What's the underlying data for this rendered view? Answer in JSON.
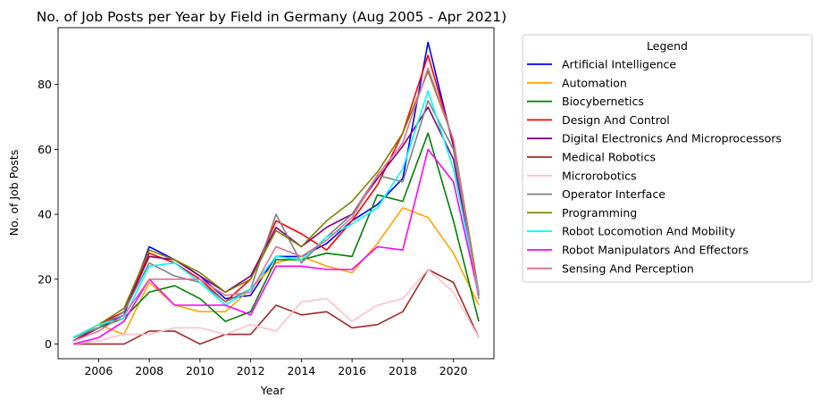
{
  "chart_data": {
    "type": "line",
    "title": "No. of Job Posts per Year by Field in Germany (Aug 2005 - Apr 2021)",
    "xlabel": "Year",
    "ylabel": "No. of Job Posts",
    "xlim": [
      2004.4,
      2021.6
    ],
    "ylim": [
      -4.5,
      97.5
    ],
    "x_ticks": [
      2006,
      2008,
      2010,
      2012,
      2014,
      2016,
      2018,
      2020
    ],
    "y_ticks": [
      0,
      20,
      40,
      60,
      80
    ],
    "grid": false,
    "legend": {
      "title": "Legend",
      "placement": "outside-right"
    },
    "x": [
      2005,
      2006,
      2007,
      2008,
      2009,
      2010,
      2011,
      2012,
      2013,
      2014,
      2015,
      2016,
      2017,
      2018,
      2019,
      2020,
      2021
    ],
    "series": [
      {
        "name": "Artificial Intelligence",
        "color": "#0000ff",
        "values": [
          2,
          5,
          9,
          30,
          26,
          21,
          14,
          15,
          27,
          27,
          31,
          38,
          43,
          51,
          93,
          61,
          15
        ]
      },
      {
        "name": "Automation",
        "color": "#ffa500",
        "values": [
          1,
          6,
          3,
          19,
          12,
          10,
          10,
          17,
          25,
          27,
          24,
          22,
          31,
          42,
          39,
          28,
          12
        ]
      },
      {
        "name": "Biocybernetics",
        "color": "#008000",
        "values": [
          1,
          5,
          8,
          16,
          18,
          14,
          7,
          10,
          26,
          26,
          28,
          27,
          46,
          44,
          65,
          38,
          7
        ]
      },
      {
        "name": "Design And Control",
        "color": "#ff0000",
        "values": [
          2,
          6,
          10,
          28,
          25,
          20,
          13,
          20,
          38,
          34,
          29,
          38,
          49,
          65,
          89,
          62,
          14
        ]
      },
      {
        "name": "Digital Electronics And Microprocessors",
        "color": "#800080",
        "values": [
          1,
          5,
          10,
          27,
          26,
          21,
          16,
          21,
          36,
          30,
          36,
          40,
          51,
          61,
          73,
          57,
          16
        ]
      },
      {
        "name": "Medical Robotics",
        "color": "#a52a2a",
        "values": [
          0,
          0,
          0,
          4,
          4,
          0,
          3,
          3,
          12,
          9,
          10,
          5,
          6,
          10,
          23,
          19,
          2
        ]
      },
      {
        "name": "Microrobotics",
        "color": "#ffc0cb",
        "values": [
          0,
          1,
          3,
          3,
          5,
          5,
          3,
          6,
          4,
          13,
          14,
          7,
          12,
          14,
          23,
          16,
          2
        ]
      },
      {
        "name": "Operator Interface",
        "color": "#808080",
        "values": [
          2,
          5,
          10,
          25,
          21,
          19,
          13,
          17,
          40,
          25,
          33,
          40,
          52,
          50,
          75,
          60,
          16
        ]
      },
      {
        "name": "Programming",
        "color": "#808000",
        "values": [
          2,
          6,
          11,
          29,
          26,
          22,
          16,
          20,
          35,
          30,
          38,
          44,
          53,
          65,
          84,
          63,
          16
        ]
      },
      {
        "name": "Robot Locomotion And Mobility",
        "color": "#00ffff",
        "values": [
          2,
          6,
          8,
          24,
          25,
          19,
          12,
          17,
          27,
          26,
          33,
          37,
          42,
          54,
          78,
          54,
          16
        ]
      },
      {
        "name": "Robot Manipulators And Effectors",
        "color": "#ff00ff",
        "values": [
          0,
          2,
          7,
          20,
          12,
          12,
          12,
          9,
          24,
          24,
          23,
          23,
          30,
          29,
          60,
          50,
          15
        ]
      },
      {
        "name": "Sensing And Perception",
        "color": "#db7093",
        "values": [
          1,
          4,
          9,
          20,
          20,
          20,
          15,
          16,
          30,
          27,
          32,
          39,
          52,
          62,
          85,
          63,
          14
        ]
      }
    ]
  }
}
